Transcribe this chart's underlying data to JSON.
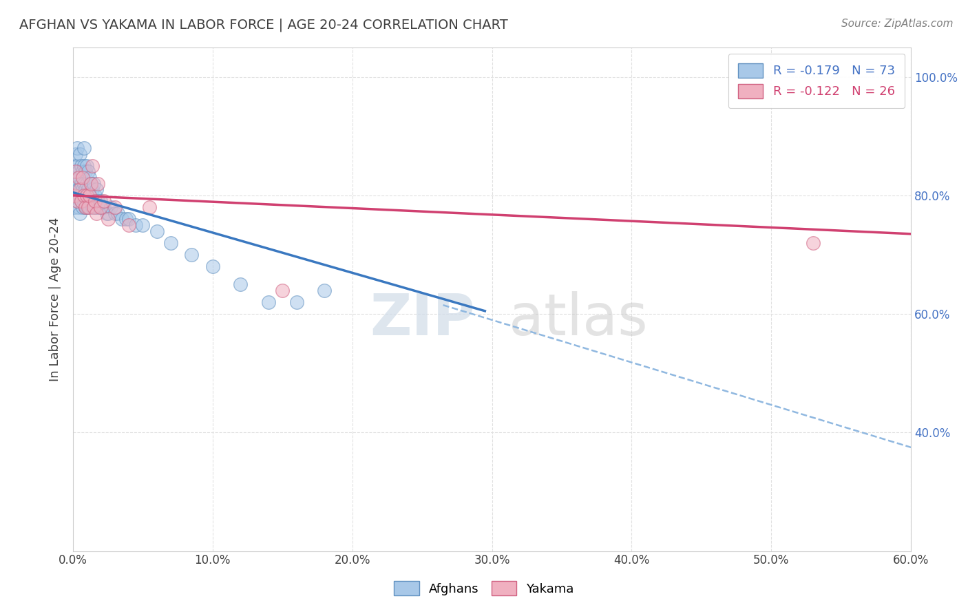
{
  "title": "AFGHAN VS YAKAMA IN LABOR FORCE | AGE 20-24 CORRELATION CHART",
  "source": "Source: ZipAtlas.com",
  "ylabel": "In Labor Force | Age 20-24",
  "xlim": [
    0.0,
    0.6
  ],
  "ylim": [
    0.2,
    1.05
  ],
  "xtick_vals": [
    0.0,
    0.1,
    0.2,
    0.3,
    0.4,
    0.5,
    0.6
  ],
  "xtick_labels": [
    "0.0%",
    "10.0%",
    "20.0%",
    "30.0%",
    "40.0%",
    "50.0%",
    "60.0%"
  ],
  "ytick_vals": [
    0.4,
    0.6,
    0.8,
    1.0
  ],
  "ytick_labels": [
    "40.0%",
    "60.0%",
    "80.0%",
    "100.0%"
  ],
  "afghan_x": [
    0.001,
    0.001,
    0.002,
    0.002,
    0.002,
    0.003,
    0.003,
    0.003,
    0.003,
    0.004,
    0.004,
    0.004,
    0.005,
    0.005,
    0.005,
    0.005,
    0.006,
    0.006,
    0.006,
    0.007,
    0.007,
    0.007,
    0.007,
    0.008,
    0.008,
    0.008,
    0.008,
    0.009,
    0.009,
    0.009,
    0.01,
    0.01,
    0.01,
    0.01,
    0.011,
    0.011,
    0.011,
    0.012,
    0.012,
    0.012,
    0.013,
    0.013,
    0.014,
    0.014,
    0.015,
    0.015,
    0.016,
    0.016,
    0.017,
    0.017,
    0.018,
    0.019,
    0.02,
    0.021,
    0.022,
    0.024,
    0.025,
    0.027,
    0.03,
    0.032,
    0.035,
    0.038,
    0.04,
    0.045,
    0.05,
    0.06,
    0.07,
    0.085,
    0.1,
    0.12,
    0.14,
    0.16,
    0.18
  ],
  "afghan_y": [
    0.78,
    0.85,
    0.8,
    0.83,
    0.87,
    0.79,
    0.82,
    0.85,
    0.88,
    0.78,
    0.81,
    0.84,
    0.77,
    0.8,
    0.83,
    0.87,
    0.79,
    0.82,
    0.85,
    0.8,
    0.78,
    0.81,
    0.84,
    0.79,
    0.82,
    0.85,
    0.88,
    0.78,
    0.81,
    0.84,
    0.78,
    0.8,
    0.82,
    0.85,
    0.79,
    0.81,
    0.84,
    0.78,
    0.8,
    0.83,
    0.79,
    0.82,
    0.78,
    0.81,
    0.79,
    0.82,
    0.78,
    0.8,
    0.78,
    0.81,
    0.79,
    0.78,
    0.79,
    0.78,
    0.78,
    0.77,
    0.77,
    0.78,
    0.77,
    0.77,
    0.76,
    0.76,
    0.76,
    0.75,
    0.75,
    0.74,
    0.72,
    0.7,
    0.68,
    0.65,
    0.62,
    0.62,
    0.64
  ],
  "yakama_x": [
    0.001,
    0.002,
    0.003,
    0.004,
    0.005,
    0.006,
    0.007,
    0.008,
    0.009,
    0.01,
    0.011,
    0.012,
    0.013,
    0.014,
    0.015,
    0.016,
    0.017,
    0.018,
    0.02,
    0.022,
    0.025,
    0.03,
    0.04,
    0.055,
    0.15,
    0.53
  ],
  "yakama_y": [
    0.8,
    0.84,
    0.79,
    0.83,
    0.81,
    0.79,
    0.83,
    0.8,
    0.78,
    0.8,
    0.78,
    0.8,
    0.82,
    0.85,
    0.78,
    0.79,
    0.77,
    0.82,
    0.78,
    0.79,
    0.76,
    0.78,
    0.75,
    0.78,
    0.64,
    0.72
  ],
  "afghan_trend_x": [
    0.0,
    0.295
  ],
  "afghan_trend_y": [
    0.805,
    0.605
  ],
  "yakama_trend_x": [
    0.0,
    0.6
  ],
  "yakama_trend_y": [
    0.8,
    0.735
  ],
  "dashed_trend_x": [
    0.265,
    0.6
  ],
  "dashed_trend_y": [
    0.615,
    0.375
  ],
  "watermark_zip": "ZIP",
  "watermark_atlas": "atlas",
  "bg_color": "#ffffff",
  "scatter_afghan_color": "#a8c8e8",
  "scatter_afghan_edge": "#6090c0",
  "scatter_yakama_color": "#f0b0c0",
  "scatter_yakama_edge": "#d06080",
  "trend_afghan_color": "#3a78c0",
  "trend_yakama_color": "#d04070",
  "dashed_color": "#90b8e0",
  "tick_color": "#4472c4",
  "title_color": "#404040",
  "source_color": "#808080",
  "grid_color": "#e0e0e0"
}
